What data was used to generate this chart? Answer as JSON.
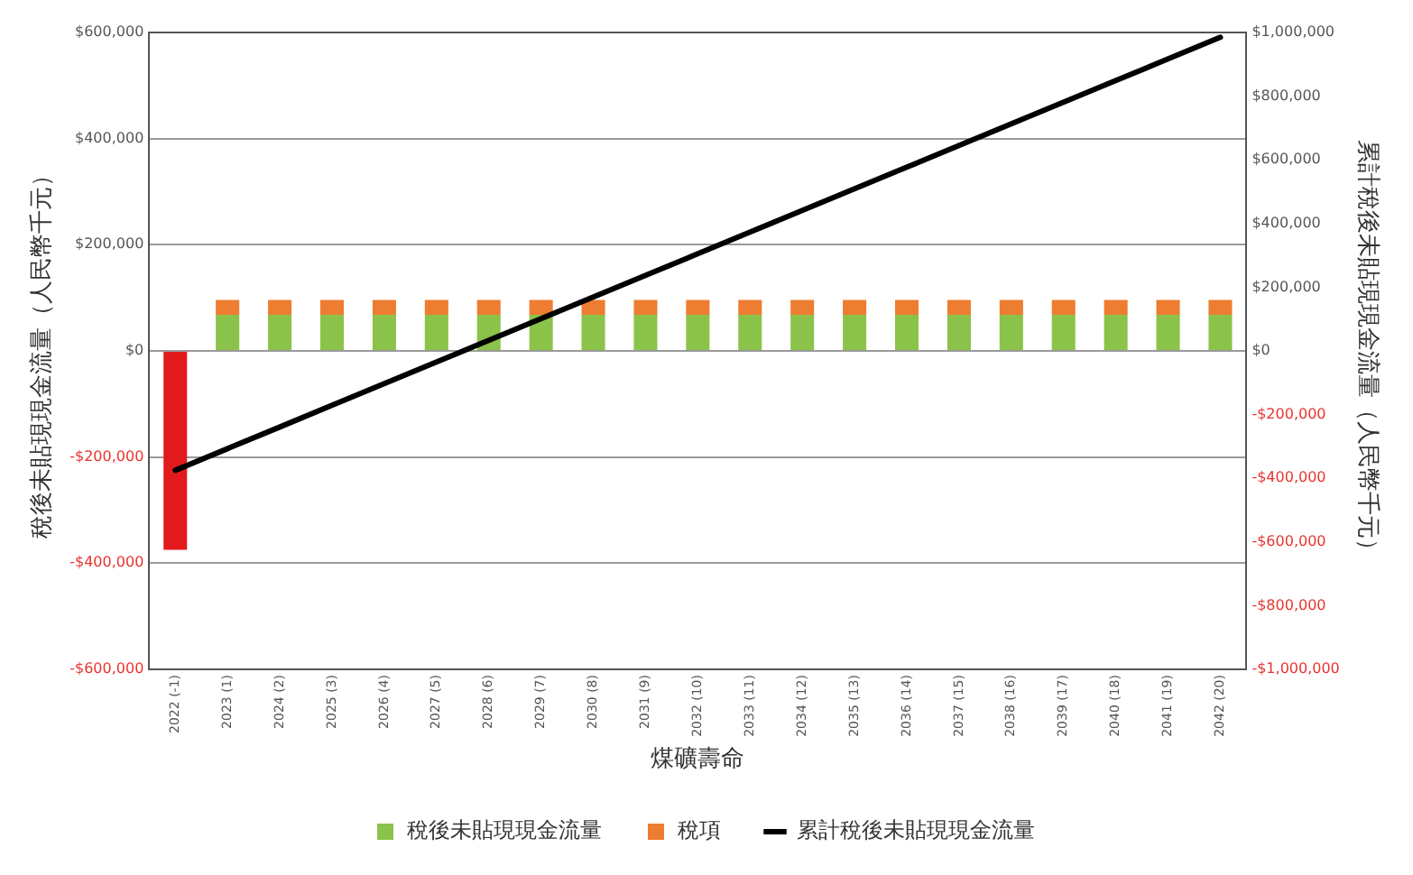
{
  "chart_data": {
    "type": "bar",
    "xlabel": "煤礦壽命",
    "ylabel": "稅後未貼現現金流量（人民幣千元）",
    "y2label": "累計稅後未貼現現金流量（人民幣千元）",
    "categories": [
      "2022 (-1)",
      "2023 (1)",
      "2024 (2)",
      "2025 (3)",
      "2026 (4)",
      "2027 (5)",
      "2028 (6)",
      "2029 (7)",
      "2030 (8)",
      "2031 (9)",
      "2032 (10)",
      "2033 (11)",
      "2034 (12)",
      "2035 (13)",
      "2036 (14)",
      "2037 (15)",
      "2038 (16)",
      "2039 (17)",
      "2040 (18)",
      "2041 (19)",
      "2042 (20)"
    ],
    "series": [
      {
        "name": "稅後未貼現現金流量",
        "color": "#8bc34a",
        "colors": [
          "#e31a1c",
          "#8bc34a",
          "#8bc34a",
          "#8bc34a",
          "#8bc34a",
          "#8bc34a",
          "#8bc34a",
          "#8bc34a",
          "#8bc34a",
          "#8bc34a",
          "#8bc34a",
          "#8bc34a",
          "#8bc34a",
          "#8bc34a",
          "#8bc34a",
          "#8bc34a",
          "#8bc34a",
          "#8bc34a",
          "#8bc34a",
          "#8bc34a",
          "#8bc34a"
        ],
        "values": [
          -375000,
          68000,
          68000,
          68000,
          68000,
          68000,
          68000,
          68000,
          68000,
          68000,
          68000,
          68000,
          68000,
          68000,
          68000,
          68000,
          68000,
          68000,
          68000,
          68000,
          68000
        ]
      },
      {
        "name": "稅項",
        "type": "bar",
        "color": "#ed7d31",
        "values": [
          null,
          28000,
          28000,
          28000,
          28000,
          28000,
          28000,
          28000,
          28000,
          28000,
          28000,
          28000,
          28000,
          28000,
          28000,
          28000,
          28000,
          28000,
          28000,
          28000,
          28000
        ]
      },
      {
        "name": "累計稅後未貼現現金流量",
        "type": "line",
        "axis": "y2",
        "color": "#000000",
        "marker": "none",
        "line_style": "solid",
        "values": [
          -375000,
          -307000,
          -239000,
          -171000,
          -103000,
          -35000,
          33000,
          101000,
          169000,
          237000,
          305000,
          373000,
          441000,
          509000,
          577000,
          645000,
          713000,
          781000,
          849000,
          917000,
          985000
        ]
      }
    ],
    "stacked": true,
    "ylim": [
      -600000,
      600000
    ],
    "yticks": [
      {
        "value": -600000,
        "label": "-$600,000"
      },
      {
        "value": -400000,
        "label": "-$400,000"
      },
      {
        "value": -200000,
        "label": "-$200,000"
      },
      {
        "value": 0,
        "label": "$0"
      },
      {
        "value": 200000,
        "label": "$200,000"
      },
      {
        "value": 400000,
        "label": "$400,000"
      },
      {
        "value": 600000,
        "label": "$600,000"
      }
    ],
    "y2lim": [
      -1000000,
      1000000
    ],
    "y2ticks": [
      {
        "value": -1000000,
        "label": "-$1,000,000"
      },
      {
        "value": -800000,
        "label": "-$800,000"
      },
      {
        "value": -600000,
        "label": "-$600,000"
      },
      {
        "value": -400000,
        "label": "-$400,000"
      },
      {
        "value": -200000,
        "label": "-$200,000"
      },
      {
        "value": 0,
        "label": "$0"
      },
      {
        "value": 200000,
        "label": "$200,000"
      },
      {
        "value": 400000,
        "label": "$400,000"
      },
      {
        "value": 600000,
        "label": "$600,000"
      },
      {
        "value": 800000,
        "label": "$800,000"
      },
      {
        "value": 1000000,
        "label": "$1,000,000"
      }
    ],
    "grid": "y",
    "legend": "bottom"
  }
}
